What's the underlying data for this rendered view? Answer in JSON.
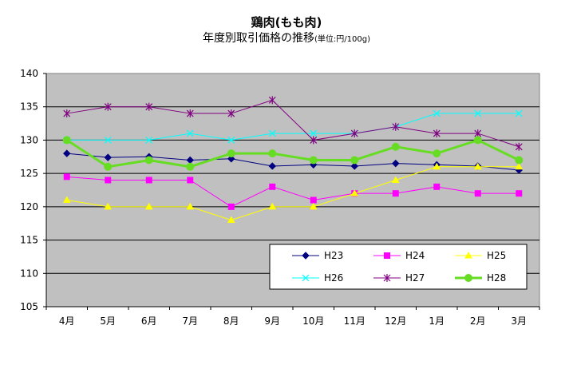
{
  "header": {
    "title": "鶏肉(もも肉)",
    "subtitle": "年度別取引価格の推移",
    "unit": "(単位:円/100g)"
  },
  "chart_data": {
    "type": "line",
    "title": "鶏肉(もも肉)",
    "subtitle": "年度別取引価格の推移(単位:円/100g)",
    "xlabel": "",
    "ylabel": "",
    "categories": [
      "4月",
      "5月",
      "6月",
      "7月",
      "8月",
      "9月",
      "10月",
      "11月",
      "12月",
      "1月",
      "2月",
      "3月"
    ],
    "ylim": [
      105,
      140
    ],
    "yticks": [
      105,
      110,
      115,
      120,
      125,
      130,
      135,
      140
    ],
    "grid": true,
    "legend_position": "bottom-right",
    "series": [
      {
        "name": "H23",
        "color": "#000080",
        "marker": "diamond",
        "values": [
          128,
          127.4,
          127.5,
          127,
          127.2,
          126.1,
          126.3,
          126.1,
          126.5,
          126.3,
          126.1,
          125.5
        ]
      },
      {
        "name": "H24",
        "color": "#ff00ff",
        "marker": "square",
        "values": [
          124.5,
          124,
          124,
          124,
          120,
          123,
          121,
          122,
          122,
          123,
          122,
          122
        ]
      },
      {
        "name": "H25",
        "color": "#ffff00",
        "marker": "triangle",
        "values": [
          121,
          120,
          120,
          120,
          118,
          120,
          120,
          122,
          124,
          126,
          126,
          126
        ]
      },
      {
        "name": "H26",
        "color": "#00ffff",
        "marker": "x",
        "values": [
          130,
          130,
          130,
          131,
          130,
          131,
          131,
          131,
          132,
          134,
          134,
          134
        ]
      },
      {
        "name": "H27",
        "color": "#800080",
        "marker": "star",
        "values": [
          134,
          135,
          135,
          134,
          134,
          136,
          130,
          131,
          132,
          131,
          131,
          129
        ]
      },
      {
        "name": "H28",
        "color": "#66dd22",
        "marker": "circle",
        "values": [
          130,
          126,
          127,
          126,
          128,
          128,
          127,
          127,
          129,
          128,
          130,
          127
        ]
      }
    ]
  }
}
